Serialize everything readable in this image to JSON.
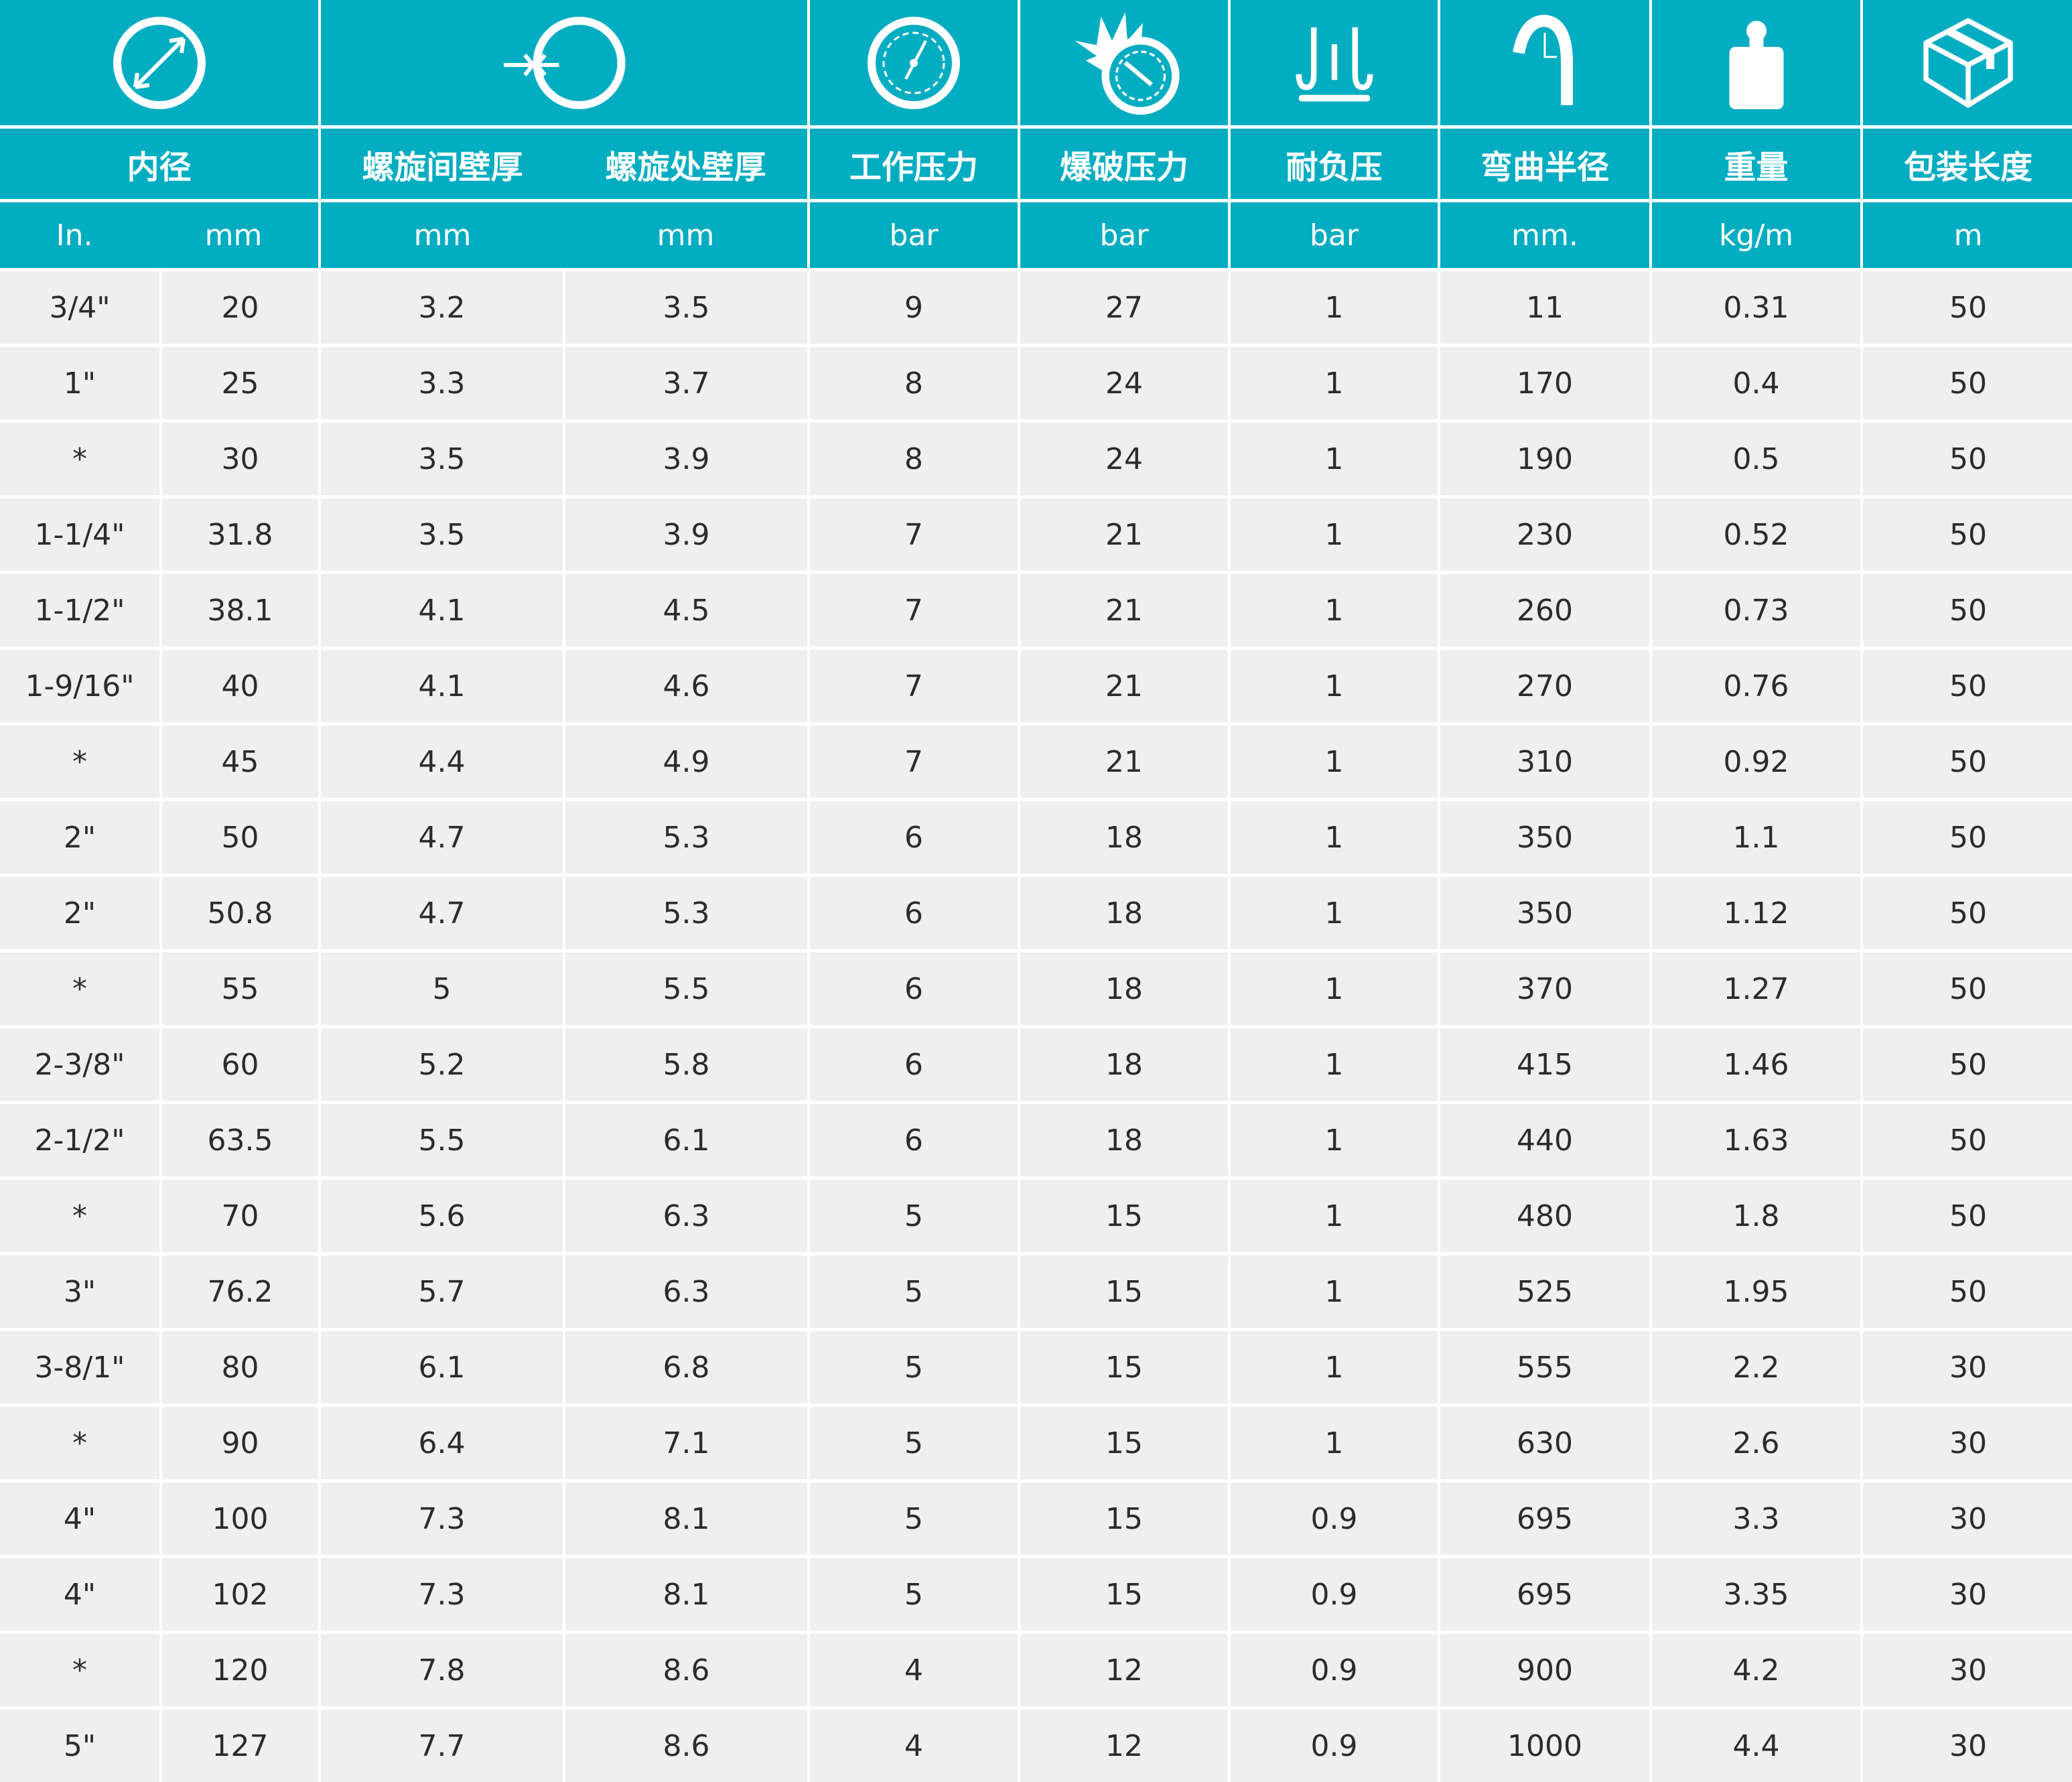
{
  "colors": {
    "header_bg": "#03adc1",
    "row_bg": "#efefef",
    "text": "#2b2b2b"
  },
  "icons": [
    "inner-diameter-icon",
    "wall-thickness-icon",
    "pressure-gauge-icon",
    "burst-pressure-icon",
    "vacuum-icon",
    "bend-radius-icon",
    "weight-icon",
    "package-box-icon"
  ],
  "headers": {
    "inner_diameter": "内径",
    "wall_between_spiral": "螺旋间壁厚",
    "wall_at_spiral": "螺旋处壁厚",
    "working_pressure": "工作压力",
    "burst_pressure": "爆破压力",
    "vacuum": "耐负压",
    "bend_radius": "弯曲半径",
    "weight": "重量",
    "package_length": "包装长度"
  },
  "units": [
    "In.",
    "mm",
    "mm",
    "mm",
    "bar",
    "bar",
    "bar",
    "mm.",
    "kg/m",
    "m"
  ],
  "rows": [
    [
      "3/4\"",
      "20",
      "3.2",
      "3.5",
      "9",
      "27",
      "1",
      "11",
      "0.31",
      "50"
    ],
    [
      "1\"",
      "25",
      "3.3",
      "3.7",
      "8",
      "24",
      "1",
      "170",
      "0.4",
      "50"
    ],
    [
      "*",
      "30",
      "3.5",
      "3.9",
      "8",
      "24",
      "1",
      "190",
      "0.5",
      "50"
    ],
    [
      "1-1/4\"",
      "31.8",
      "3.5",
      "3.9",
      "7",
      "21",
      "1",
      "230",
      "0.52",
      "50"
    ],
    [
      "1-1/2\"",
      "38.1",
      "4.1",
      "4.5",
      "7",
      "21",
      "1",
      "260",
      "0.73",
      "50"
    ],
    [
      "1-9/16\"",
      "40",
      "4.1",
      "4.6",
      "7",
      "21",
      "1",
      "270",
      "0.76",
      "50"
    ],
    [
      "*",
      "45",
      "4.4",
      "4.9",
      "7",
      "21",
      "1",
      "310",
      "0.92",
      "50"
    ],
    [
      "2\"",
      "50",
      "4.7",
      "5.3",
      "6",
      "18",
      "1",
      "350",
      "1.1",
      "50"
    ],
    [
      "2\"",
      "50.8",
      "4.7",
      "5.3",
      "6",
      "18",
      "1",
      "350",
      "1.12",
      "50"
    ],
    [
      "*",
      "55",
      "5",
      "5.5",
      "6",
      "18",
      "1",
      "370",
      "1.27",
      "50"
    ],
    [
      "2-3/8\"",
      "60",
      "5.2",
      "5.8",
      "6",
      "18",
      "1",
      "415",
      "1.46",
      "50"
    ],
    [
      "2-1/2\"",
      "63.5",
      "5.5",
      "6.1",
      "6",
      "18",
      "1",
      "440",
      "1.63",
      "50"
    ],
    [
      "*",
      "70",
      "5.6",
      "6.3",
      "5",
      "15",
      "1",
      "480",
      "1.8",
      "50"
    ],
    [
      "3\"",
      "76.2",
      "5.7",
      "6.3",
      "5",
      "15",
      "1",
      "525",
      "1.95",
      "50"
    ],
    [
      "3-8/1\"",
      "80",
      "6.1",
      "6.8",
      "5",
      "15",
      "1",
      "555",
      "2.2",
      "30"
    ],
    [
      "*",
      "90",
      "6.4",
      "7.1",
      "5",
      "15",
      "1",
      "630",
      "2.6",
      "30"
    ],
    [
      "4\"",
      "100",
      "7.3",
      "8.1",
      "5",
      "15",
      "0.9",
      "695",
      "3.3",
      "30"
    ],
    [
      "4\"",
      "102",
      "7.3",
      "8.1",
      "5",
      "15",
      "0.9",
      "695",
      "3.35",
      "30"
    ],
    [
      "*",
      "120",
      "7.8",
      "8.6",
      "4",
      "12",
      "0.9",
      "900",
      "4.2",
      "30"
    ],
    [
      "5\"",
      "127",
      "7.7",
      "8.6",
      "4",
      "12",
      "0.9",
      "1000",
      "4.4",
      "30"
    ]
  ]
}
